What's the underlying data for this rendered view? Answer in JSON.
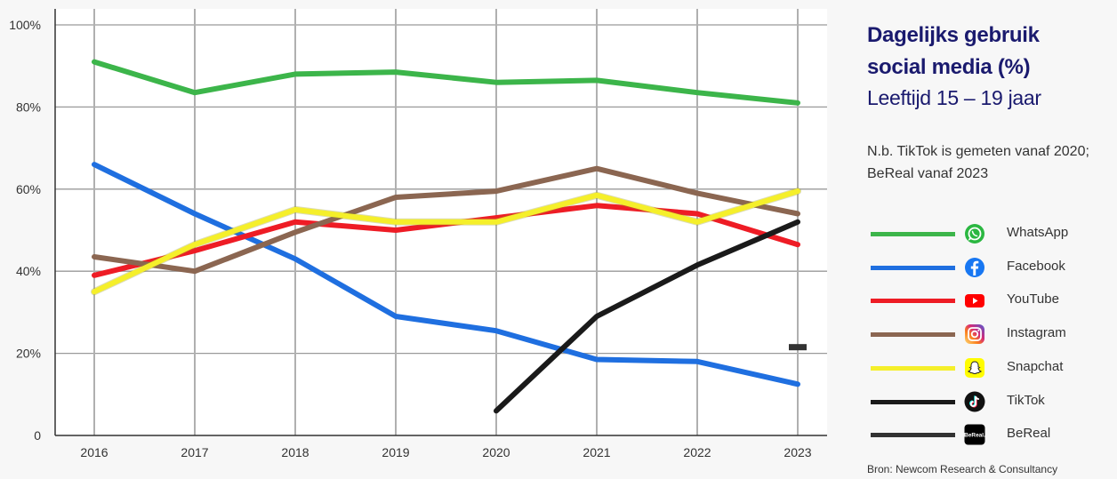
{
  "chart_data": {
    "type": "line",
    "title": "Dagelijks gebruik social media (%)",
    "title_lines": [
      "Dagelijks gebruik",
      "social media (%)"
    ],
    "subtitle": "Leeftijd 15 – 19 jaar",
    "note_lines": [
      "N.b. TikTok is gemeten vanaf 2020;",
      "BeReal vanaf 2023"
    ],
    "source": "Bron: Newcom Research & Consultancy",
    "x": [
      2016,
      2017,
      2018,
      2019,
      2020,
      2021,
      2022,
      2023
    ],
    "x_tick_labels": [
      "2016",
      "2017",
      "2018",
      "2019",
      "2020",
      "2021",
      "2022",
      "2023"
    ],
    "y_tick_labels": [
      "0",
      "20%",
      "40%",
      "60%",
      "80%",
      "100%"
    ],
    "y_ticks": [
      0,
      20,
      40,
      60,
      80,
      100
    ],
    "ylim": [
      0,
      100
    ],
    "grid": true,
    "legend_position": "right",
    "series": [
      {
        "name": "WhatsApp",
        "color": "#3cb54a",
        "icon": "whatsapp-icon",
        "values": [
          91,
          83.5,
          88,
          88.5,
          86,
          86.5,
          83.5,
          81
        ]
      },
      {
        "name": "Facebook",
        "color": "#1f6fe0",
        "icon": "facebook-icon",
        "values": [
          66,
          54,
          43,
          29,
          25.5,
          18.5,
          18,
          12.5
        ]
      },
      {
        "name": "YouTube",
        "color": "#ee1c25",
        "icon": "youtube-icon",
        "values": [
          39,
          45,
          52,
          50,
          53,
          56,
          54,
          46.5
        ]
      },
      {
        "name": "Instagram",
        "color": "#8b6651",
        "icon": "instagram-icon",
        "values": [
          43.5,
          40,
          49.5,
          58,
          59.5,
          65,
          59,
          54
        ]
      },
      {
        "name": "Snapchat",
        "color": "#f5ef2a",
        "icon": "snapchat-icon",
        "values": [
          35,
          46.5,
          55,
          52,
          52,
          58.5,
          52,
          59.5
        ]
      },
      {
        "name": "TikTok",
        "color": "#1a1a1a",
        "icon": "tiktok-icon",
        "values": [
          null,
          null,
          null,
          null,
          6,
          29,
          41.5,
          52
        ]
      },
      {
        "name": "BeReal",
        "color": "#333333",
        "icon": "bereal-icon",
        "values": [
          null,
          null,
          null,
          null,
          null,
          null,
          null,
          21.5
        ]
      }
    ]
  }
}
